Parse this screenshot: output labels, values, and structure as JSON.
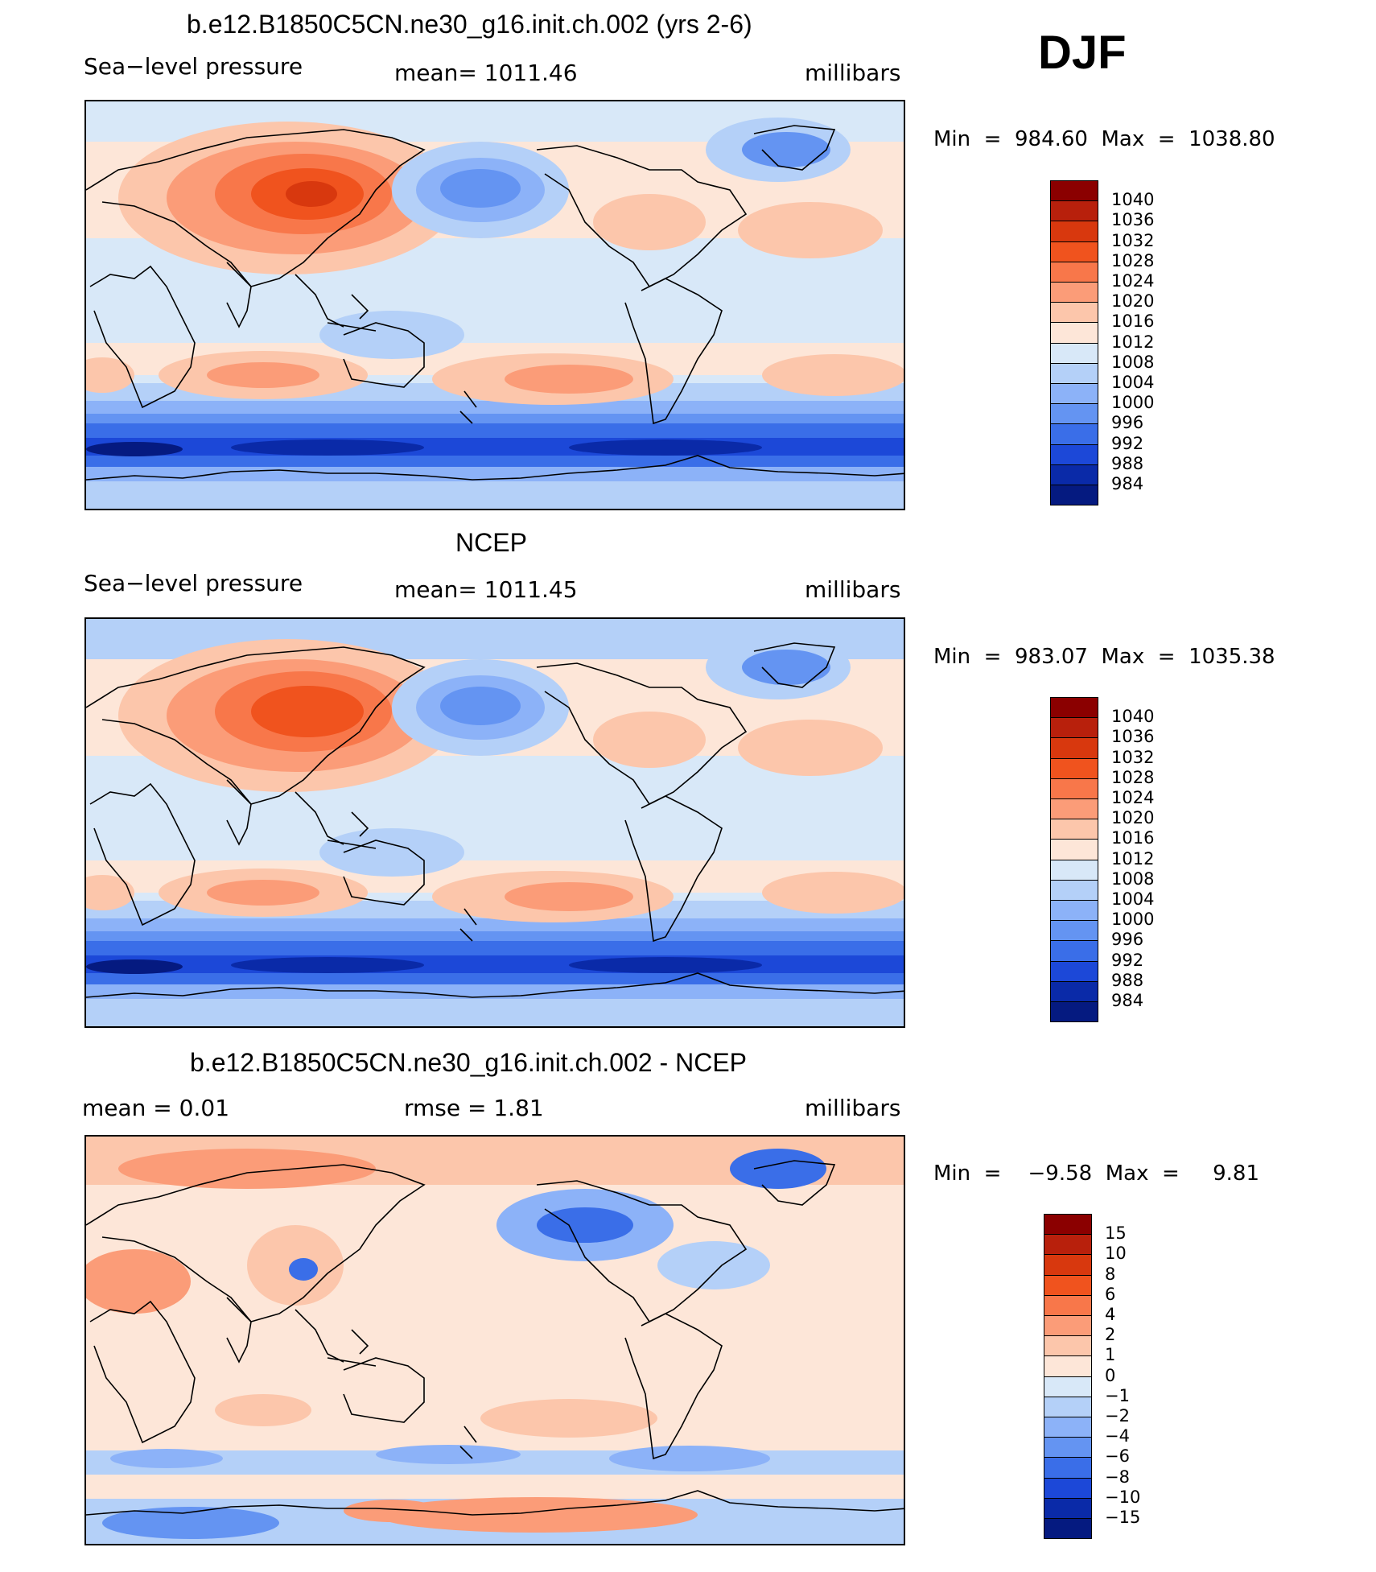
{
  "season": "DJF",
  "panels": [
    {
      "title": "b.e12.B1850C5CN.ne30_g16.init.ch.002 (yrs 2-6)",
      "variable": "Sea−level pressure",
      "stat": "mean=  1011.46",
      "units": "millibars",
      "minmax": "Min  =  984.60  Max  =  1038.80"
    },
    {
      "title": "NCEP",
      "variable": "Sea−level pressure",
      "stat": "mean=  1011.45",
      "units": "millibars",
      "minmax": "Min  =  983.07  Max  =  1035.38"
    },
    {
      "title": "b.e12.B1850C5CN.ne30_g16.init.ch.002 - NCEP",
      "stat_left": "mean  =     0.01",
      "stat_mid": "rmse  =     1.81",
      "units": "millibars",
      "minmax": "Min  =    −9.58  Max  =     9.81"
    }
  ],
  "chart_data": [
    {
      "type": "heatmap",
      "title": "b.e12.B1850C5CN.ne30_g16.init.ch.002 (yrs 2-6)",
      "subtitle": "Sea-level pressure",
      "units": "millibars",
      "mean": 1011.46,
      "min": 984.6,
      "max": 1038.8,
      "projection": "global cylindrical equidistant, centered 180",
      "colorbar_levels": [
        "1040",
        "1036",
        "1032",
        "1028",
        "1024",
        "1020",
        "1016",
        "1012",
        "1008",
        "1004",
        "1000",
        "996",
        "992",
        "988",
        "984"
      ]
    },
    {
      "type": "heatmap",
      "title": "NCEP",
      "subtitle": "Sea-level pressure",
      "units": "millibars",
      "mean": 1011.45,
      "min": 983.07,
      "max": 1035.38,
      "projection": "global cylindrical equidistant, centered 180",
      "colorbar_levels": [
        "1040",
        "1036",
        "1032",
        "1028",
        "1024",
        "1020",
        "1016",
        "1012",
        "1008",
        "1004",
        "1000",
        "996",
        "992",
        "988",
        "984"
      ]
    },
    {
      "type": "heatmap",
      "title": "b.e12.B1850C5CN.ne30_g16.init.ch.002 - NCEP",
      "units": "millibars",
      "mean": 0.01,
      "rmse": 1.81,
      "min": -9.58,
      "max": 9.81,
      "projection": "global cylindrical equidistant, centered 180",
      "colorbar_levels": [
        "15",
        "10",
        "8",
        "6",
        "4",
        "2",
        "1",
        "0",
        "−1",
        "−2",
        "−4",
        "−6",
        "−8",
        "−10",
        "−15"
      ]
    }
  ],
  "colorbar_colors": [
    "#8b0000",
    "#b8200c",
    "#d8380e",
    "#f0531e",
    "#f8774a",
    "#fb9c78",
    "#fcc6ab",
    "#fde6d8",
    "#d8e8f8",
    "#b4d0f8",
    "#8cb2f8",
    "#6494f2",
    "#3a6ee8",
    "#1c48d8",
    "#0a2aa8",
    "#051a80"
  ]
}
